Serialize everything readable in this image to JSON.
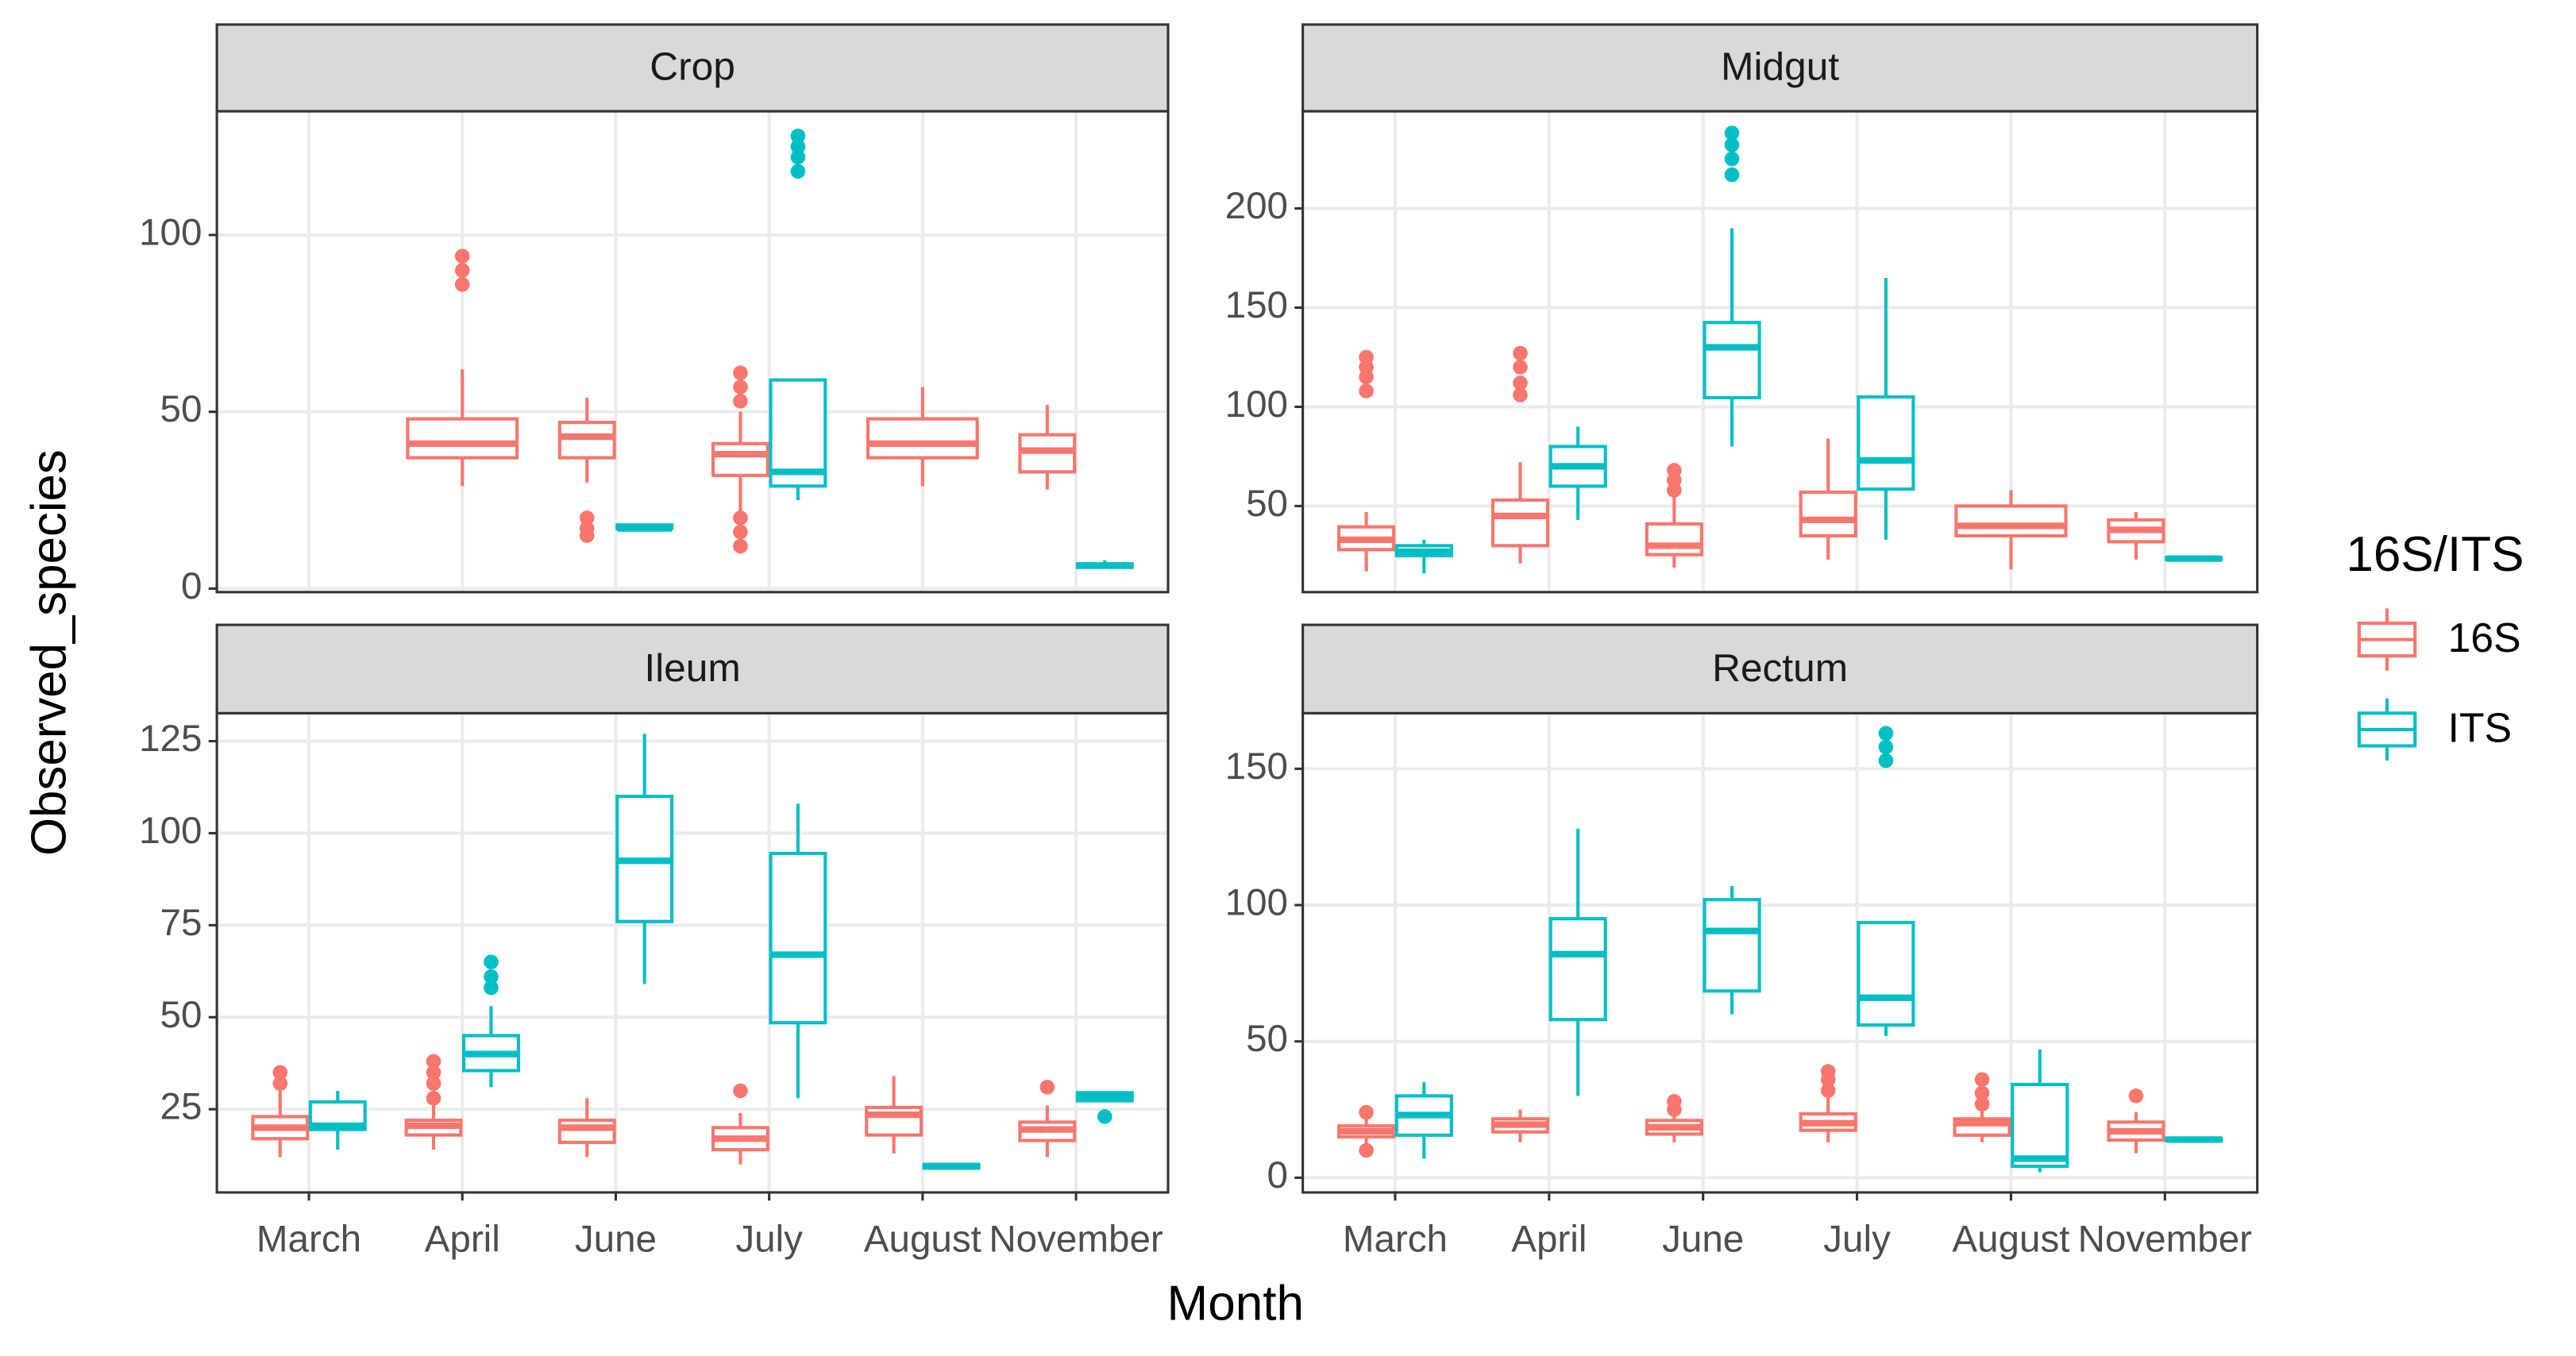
{
  "chart_data": {
    "type": "boxplot",
    "xlabel": "Month",
    "ylabel": "Observed_species",
    "legend_title": "16S/ITS",
    "legend_position": "right",
    "categories": [
      "March",
      "April",
      "June",
      "July",
      "August",
      "November"
    ],
    "series": [
      {
        "name": "16S",
        "color": "#F8766D"
      },
      {
        "name": "ITS",
        "color": "#00BFC4"
      }
    ],
    "panels": [
      {
        "title": "Crop",
        "ylim": [
          -1,
          135
        ],
        "yticks": [
          0,
          50,
          100
        ],
        "data": [
          [
            null,
            {
              "whislo": 29,
              "q1": 37,
              "med": 41,
              "q3": 48,
              "whishi": 62,
              "outliers": [
                86,
                90,
                94
              ]
            },
            {
              "whislo": 30,
              "q1": 37,
              "med": 43,
              "q3": 47,
              "whishi": 54,
              "outliers": [
                15,
                17,
                20
              ]
            },
            {
              "whislo": 22,
              "q1": 32,
              "med": 38,
              "q3": 41,
              "whishi": 50,
              "outliers": [
                12,
                16,
                20,
                53,
                57,
                61
              ]
            },
            {
              "whislo": 29,
              "q1": 37,
              "med": 41,
              "q3": 48,
              "whishi": 57
            },
            {
              "whislo": 28,
              "q1": 33,
              "med": 39,
              "q3": 43.5,
              "whishi": 52
            }
          ],
          [
            null,
            null,
            {
              "whislo": 17,
              "q1": 17,
              "med": 17,
              "q3": 18,
              "whishi": 18
            },
            {
              "whislo": 25,
              "q1": 29,
              "med": 33,
              "q3": 59,
              "whishi": 59,
              "outliers": [
                118,
                122,
                125,
                128
              ]
            },
            null,
            {
              "whislo": 6,
              "q1": 6,
              "med": 6.5,
              "q3": 7,
              "whishi": 8
            }
          ]
        ]
      },
      {
        "title": "Midgut",
        "ylim": [
          6.6,
          249
        ],
        "yticks": [
          50,
          100,
          150,
          200
        ],
        "data": [
          [
            {
              "whislo": 17,
              "q1": 28,
              "med": 33,
              "q3": 39.5,
              "whishi": 47,
              "outliers": [
                108,
                115,
                120,
                125
              ]
            },
            {
              "whislo": 21,
              "q1": 30,
              "med": 45,
              "q3": 53,
              "whishi": 72,
              "outliers": [
                106,
                112,
                120,
                127
              ]
            },
            {
              "whislo": 19,
              "q1": 25.5,
              "med": 30,
              "q3": 41,
              "whishi": 55,
              "outliers": [
                58,
                63,
                68
              ]
            },
            {
              "whislo": 23,
              "q1": 35,
              "med": 43,
              "q3": 57,
              "whishi": 84
            },
            {
              "whislo": 18,
              "q1": 35,
              "med": 40,
              "q3": 50,
              "whishi": 58
            },
            {
              "whislo": 23,
              "q1": 32,
              "med": 38,
              "q3": 43,
              "whishi": 47
            }
          ],
          [
            {
              "whislo": 16,
              "q1": 25,
              "med": 27,
              "q3": 30,
              "whishi": 33
            },
            {
              "whislo": 43,
              "q1": 60,
              "med": 70,
              "q3": 80,
              "whishi": 90
            },
            {
              "whislo": 80,
              "q1": 104.6,
              "med": 130,
              "q3": 142.5,
              "whishi": 190,
              "outliers": [
                217,
                225,
                232,
                238
              ]
            },
            {
              "whislo": 33,
              "q1": 58.5,
              "med": 73,
              "q3": 105,
              "whishi": 165
            },
            null,
            {
              "whislo": 23,
              "q1": 23,
              "med": 23.5,
              "q3": 24,
              "whishi": 24
            }
          ]
        ]
      },
      {
        "title": "Ileum",
        "ylim": [
          2.4,
          132.6
        ],
        "yticks": [
          25,
          50,
          75,
          100,
          125
        ],
        "data": [
          [
            {
              "whislo": 12,
              "q1": 17,
              "med": 20,
              "q3": 23,
              "whishi": 30,
              "outliers": [
                32,
                35
              ]
            },
            {
              "whislo": 14,
              "q1": 18,
              "med": 20.5,
              "q3": 22,
              "whishi": 26,
              "outliers": [
                28,
                32,
                35,
                38
              ]
            },
            {
              "whislo": 12,
              "q1": 16,
              "med": 20,
              "q3": 22,
              "whishi": 28
            },
            {
              "whislo": 10,
              "q1": 14,
              "med": 17,
              "q3": 20,
              "whishi": 24,
              "outliers": [
                30
              ]
            },
            {
              "whislo": 13,
              "q1": 18,
              "med": 23.5,
              "q3": 25.5,
              "whishi": 34
            },
            {
              "whislo": 12,
              "q1": 16.5,
              "med": 19.5,
              "q3": 21.5,
              "whishi": 26,
              "outliers": [
                31
              ]
            }
          ],
          [
            {
              "whislo": 14,
              "q1": 19.5,
              "med": 20.5,
              "q3": 27,
              "whishi": 30
            },
            {
              "whislo": 31,
              "q1": 35.5,
              "med": 40,
              "q3": 45,
              "whishi": 53,
              "outliers": [
                58,
                61,
                65
              ]
            },
            {
              "whislo": 59,
              "q1": 76,
              "med": 92.5,
              "q3": 110,
              "whishi": 127
            },
            {
              "whislo": 28,
              "q1": 48.5,
              "med": 67,
              "q3": 94.5,
              "whishi": 108
            },
            {
              "whislo": 9,
              "q1": 9,
              "med": 9.5,
              "q3": 10,
              "whishi": 10
            },
            {
              "whislo": 27,
              "q1": 27.3,
              "med": 28.5,
              "q3": 29.5,
              "whishi": 29.5,
              "outliers": [
                23
              ]
            }
          ]
        ]
      },
      {
        "title": "Rectum",
        "ylim": [
          -5.4,
          170.4
        ],
        "yticks": [
          0,
          50,
          100,
          150
        ],
        "data": [
          [
            {
              "whislo": 12,
              "q1": 15,
              "med": 17,
              "q3": 19,
              "whishi": 22,
              "outliers": [
                10,
                24
              ]
            },
            {
              "whislo": 13,
              "q1": 16.8,
              "med": 19.5,
              "q3": 21.6,
              "whishi": 25
            },
            {
              "whislo": 13,
              "q1": 16,
              "med": 18.5,
              "q3": 21,
              "whishi": 23,
              "outliers": [
                25,
                28
              ]
            },
            {
              "whislo": 13,
              "q1": 17.4,
              "med": 20,
              "q3": 23.4,
              "whishi": 30,
              "outliers": [
                32,
                36,
                39
              ]
            },
            {
              "whislo": 13,
              "q1": 15.6,
              "med": 20,
              "q3": 21.6,
              "whishi": 25,
              "outliers": [
                27,
                31,
                36
              ]
            },
            {
              "whislo": 9,
              "q1": 13.8,
              "med": 17,
              "q3": 20.4,
              "whishi": 24,
              "outliers": [
                30
              ]
            }
          ],
          [
            {
              "whislo": 7,
              "q1": 15.6,
              "med": 23,
              "q3": 30,
              "whishi": 35
            },
            {
              "whislo": 30,
              "q1": 58,
              "med": 82,
              "q3": 95,
              "whishi": 128
            },
            {
              "whislo": 60,
              "q1": 68.5,
              "med": 90.5,
              "q3": 102,
              "whishi": 107
            },
            {
              "whislo": 52,
              "q1": 56,
              "med": 66,
              "q3": 93.6,
              "whishi": 93.6,
              "outliers": [
                153,
                158,
                163
              ]
            },
            {
              "whislo": 2,
              "q1": 4.2,
              "med": 7,
              "q3": 34.2,
              "whishi": 47
            },
            {
              "whislo": 13,
              "q1": 13.5,
              "med": 14,
              "q3": 14.5,
              "whishi": 15
            }
          ]
        ]
      }
    ]
  }
}
